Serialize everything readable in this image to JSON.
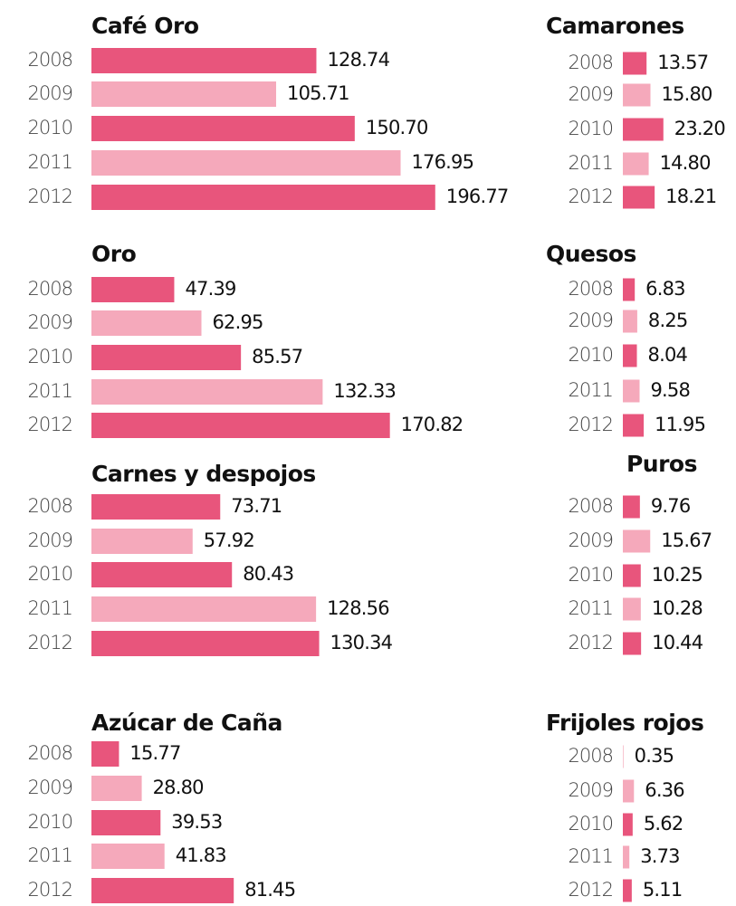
{
  "chart_data": [
    {
      "type": "bar",
      "title": "Café Oro",
      "categories": [
        "2008",
        "2009",
        "2010",
        "2011",
        "2012"
      ],
      "values": [
        128.74,
        105.71,
        150.7,
        176.95,
        196.77
      ],
      "value_labels": [
        "128.74",
        "105.71",
        "150.70",
        "176.95",
        "196.77"
      ],
      "colors": [
        "#e8557c",
        "#f5a9bb",
        "#e8557c",
        "#f5a9bb",
        "#e8557c"
      ]
    },
    {
      "type": "bar",
      "title": "Oro",
      "categories": [
        "2008",
        "2009",
        "2010",
        "2011",
        "2012"
      ],
      "values": [
        47.39,
        62.95,
        85.57,
        132.33,
        170.82
      ],
      "value_labels": [
        "47.39",
        "62.95",
        "85.57",
        "132.33",
        "170.82"
      ],
      "colors": [
        "#e8557c",
        "#f5a9bb",
        "#e8557c",
        "#f5a9bb",
        "#e8557c"
      ]
    },
    {
      "type": "bar",
      "title": "Carnes y despojos",
      "categories": [
        "2008",
        "2009",
        "2010",
        "2011",
        "2012"
      ],
      "values": [
        73.71,
        57.92,
        80.43,
        128.56,
        130.34
      ],
      "value_labels": [
        "73.71",
        "57.92",
        "80.43",
        "128.56",
        "130.34"
      ],
      "colors": [
        "#e8557c",
        "#f5a9bb",
        "#e8557c",
        "#f5a9bb",
        "#e8557c"
      ]
    },
    {
      "type": "bar",
      "title": "Azúcar de Caña",
      "categories": [
        "2008",
        "2009",
        "2010",
        "2011",
        "2012"
      ],
      "values": [
        15.77,
        28.8,
        39.53,
        41.83,
        81.45
      ],
      "value_labels": [
        "15.77",
        "28.80",
        "39.53",
        "41.83",
        "81.45"
      ],
      "colors": [
        "#e8557c",
        "#f5a9bb",
        "#e8557c",
        "#f5a9bb",
        "#e8557c"
      ]
    },
    {
      "type": "bar",
      "title": "Camarones",
      "categories": [
        "2008",
        "2009",
        "2010",
        "2011",
        "2012"
      ],
      "values": [
        13.57,
        15.8,
        23.2,
        14.8,
        18.21
      ],
      "value_labels": [
        "13.57",
        "15.80",
        "23.20",
        "14.80",
        "18.21"
      ],
      "colors": [
        "#e8557c",
        "#f5a9bb",
        "#e8557c",
        "#f5a9bb",
        "#e8557c"
      ]
    },
    {
      "type": "bar",
      "title": "Quesos",
      "categories": [
        "2008",
        "2009",
        "2010",
        "2011",
        "2012"
      ],
      "values": [
        6.83,
        8.25,
        8.04,
        9.58,
        11.95
      ],
      "value_labels": [
        "6.83",
        "8.25",
        "8.04",
        "9.58",
        "11.95"
      ],
      "colors": [
        "#e8557c",
        "#f5a9bb",
        "#e8557c",
        "#f5a9bb",
        "#e8557c"
      ]
    },
    {
      "type": "bar",
      "title": "Puros",
      "categories": [
        "2008",
        "2009",
        "2010",
        "2011",
        "2012"
      ],
      "values": [
        9.76,
        15.67,
        10.25,
        10.28,
        10.44
      ],
      "value_labels": [
        "9.76",
        "15.67",
        "10.25",
        "10.28",
        "10.44"
      ],
      "colors": [
        "#e8557c",
        "#f5a9bb",
        "#e8557c",
        "#f5a9bb",
        "#e8557c"
      ]
    },
    {
      "type": "bar",
      "title": "Frijoles rojos",
      "categories": [
        "2008",
        "2009",
        "2010",
        "2011",
        "2012"
      ],
      "values": [
        0.35,
        6.36,
        5.62,
        3.73,
        5.11
      ],
      "value_labels": [
        "0.35",
        "6.36",
        "5.62",
        "3.73",
        "5.11"
      ],
      "colors": [
        "#f5a9bb",
        "#f5a9bb",
        "#e8557c",
        "#f5a9bb",
        "#e8557c"
      ]
    }
  ]
}
